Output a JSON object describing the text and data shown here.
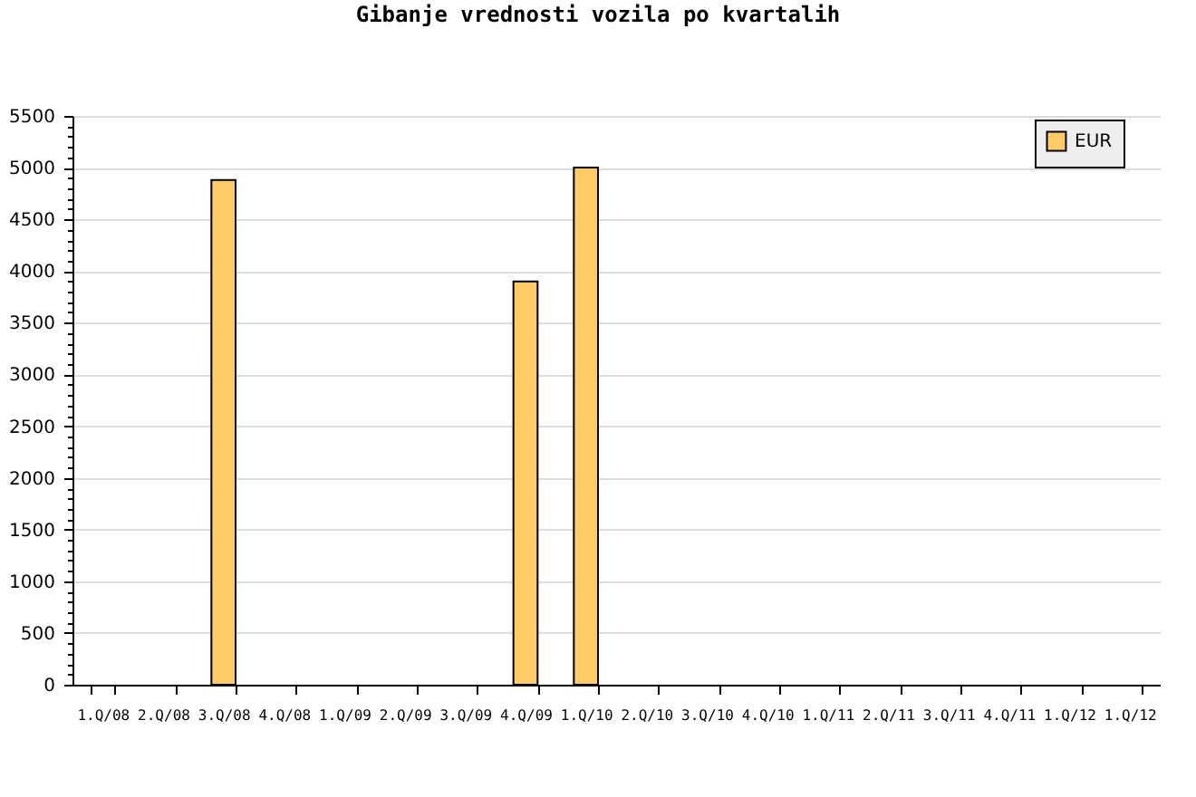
{
  "chart_data": {
    "type": "bar",
    "title": "Gibanje vrednosti vozila po kvartalih",
    "categories": [
      "1.Q/08",
      "2.Q/08",
      "3.Q/08",
      "4.Q/08",
      "1.Q/09",
      "2.Q/09",
      "3.Q/09",
      "4.Q/09",
      "1.Q/10",
      "2.Q/10",
      "3.Q/10",
      "4.Q/10",
      "1.Q/11",
      "2.Q/11",
      "3.Q/11",
      "4.Q/11",
      "1.Q/12",
      "1.Q/12"
    ],
    "series": [
      {
        "name": "EUR",
        "color": "#ffcc66",
        "values": [
          null,
          null,
          4880,
          null,
          null,
          null,
          null,
          3900,
          5000,
          null,
          null,
          null,
          null,
          null,
          null,
          null,
          null,
          null
        ]
      }
    ],
    "ylim": [
      0,
      5500
    ],
    "yticks": [
      0,
      {
        "value": 100,
        "label": null
      },
      {
        "value": 200,
        "label": null
      },
      {
        "value": 300,
        "label": null
      },
      {
        "value": 400,
        "label": null
      },
      500,
      {
        "value": 600,
        "label": null
      },
      {
        "value": 700,
        "label": null
      },
      {
        "value": 800,
        "label": null
      },
      {
        "value": 900,
        "label": null
      },
      1000,
      {
        "value": 1100,
        "label": null
      },
      {
        "value": 1200,
        "label": null
      },
      {
        "value": 1300,
        "label": null
      },
      {
        "value": 1400,
        "label": null
      },
      1500,
      {
        "value": 1600,
        "label": null
      },
      {
        "value": 1700,
        "label": null
      },
      {
        "value": 1800,
        "label": null
      },
      {
        "value": 1900,
        "label": null
      },
      2000,
      {
        "value": 2100,
        "label": null
      },
      {
        "value": 2200,
        "label": null
      },
      {
        "value": 2300,
        "label": null
      },
      {
        "value": 2400,
        "label": null
      },
      2500,
      {
        "value": 2600,
        "label": null
      },
      {
        "value": 2700,
        "label": null
      },
      {
        "value": 2800,
        "label": null
      },
      {
        "value": 2900,
        "label": null
      },
      3000,
      {
        "value": 3100,
        "label": null
      },
      {
        "value": 3200,
        "label": null
      },
      {
        "value": 3300,
        "label": null
      },
      {
        "value": 3400,
        "label": null
      },
      3500,
      {
        "value": 3600,
        "label": null
      },
      {
        "value": 3700,
        "label": null
      },
      {
        "value": 3800,
        "label": null
      },
      {
        "value": 3900,
        "label": null
      },
      4000,
      {
        "value": 4100,
        "label": null
      },
      {
        "value": 4200,
        "label": null
      },
      {
        "value": 4300,
        "label": null
      },
      {
        "value": 4400,
        "label": null
      },
      4500,
      {
        "value": 4600,
        "label": null
      },
      {
        "value": 4700,
        "label": null
      },
      {
        "value": 4800,
        "label": null
      },
      {
        "value": 4900,
        "label": null
      },
      5000,
      {
        "value": 5100,
        "label": null
      },
      {
        "value": 5200,
        "label": null
      },
      {
        "value": 5300,
        "label": null
      },
      {
        "value": 5400,
        "label": null
      },
      5500
    ],
    "grid": "y",
    "legend": "top right"
  }
}
